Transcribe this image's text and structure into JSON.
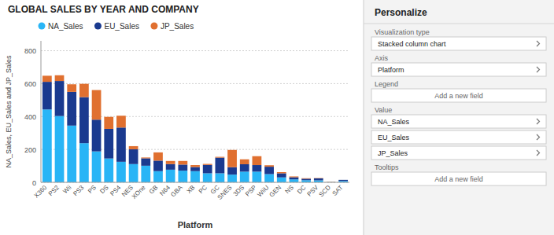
{
  "chart_data": {
    "type": "bar",
    "stacked": true,
    "title": "GLOBAL SALES BY YEAR AND COMPANY",
    "xlabel": "Platform",
    "ylabel": "NA_Sales, EU_Sales and JP_Sales",
    "categories": [
      "X360",
      "PS2",
      "Wii",
      "PS3",
      "PS",
      "DS",
      "PS4",
      "NES",
      "XOne",
      "GB",
      "N64",
      "GBA",
      "XB",
      "PC",
      "GC",
      "SNES",
      "3DS",
      "PSP",
      "WiiU",
      "GEN",
      "NS",
      "DC",
      "PSV",
      "SCD",
      "SAT"
    ],
    "series": [
      {
        "name": "NA_Sales",
        "color": "#29b5f6",
        "values": [
          443,
          403,
          345,
          238,
          188,
          145,
          125,
          111,
          101,
          68,
          77,
          71,
          68,
          55,
          55,
          47,
          65,
          65,
          50,
          30,
          18,
          13,
          12,
          2,
          8
        ]
      },
      {
        "name": "EU_Sales",
        "color": "#1a3a8f",
        "values": [
          168,
          213,
          205,
          280,
          193,
          180,
          208,
          90,
          45,
          64,
          34,
          37,
          25,
          51,
          95,
          45,
          45,
          40,
          45,
          25,
          13,
          9,
          12,
          0,
          7
        ]
      },
      {
        "name": "JP_Sales",
        "color": "#e07030",
        "values": [
          37,
          35,
          46,
          81,
          180,
          73,
          72,
          19,
          5,
          50,
          19,
          22,
          12,
          6,
          5,
          105,
          30,
          54,
          9,
          7,
          5,
          3,
          2,
          2,
          0
        ]
      }
    ],
    "ylim": [
      0,
      860
    ],
    "yticks": [
      0,
      200,
      400,
      600,
      800
    ],
    "grid": true,
    "legend": "top left",
    "annotations": [
      "Personalize",
      "Visualization type",
      "Stacked column chart",
      "Axis",
      "Platform",
      "Legend",
      "Add a new field",
      "Value",
      "NA_Sales",
      "EU_Sales",
      "JP_Sales",
      "Tooltips",
      "Add a new field"
    ]
  }
}
